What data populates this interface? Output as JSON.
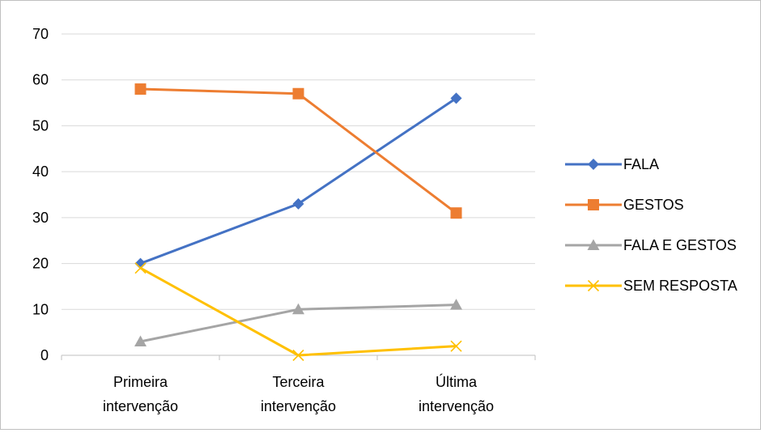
{
  "chart_data": {
    "type": "line",
    "title": "",
    "xlabel": "",
    "ylabel": "",
    "categories": [
      [
        "Primeira",
        "intervenção"
      ],
      [
        "Terceira",
        "intervenção"
      ],
      [
        "Última",
        "intervenção"
      ]
    ],
    "ylim": [
      0,
      70
    ],
    "yticks": [
      0,
      10,
      20,
      30,
      40,
      50,
      60,
      70
    ],
    "grid": true,
    "legend_position": "right",
    "series": [
      {
        "name": "FALA",
        "values": [
          20,
          33,
          56
        ],
        "color": "#4472c4",
        "marker": "diamond"
      },
      {
        "name": "GESTOS",
        "values": [
          58,
          57,
          31
        ],
        "color": "#ed7d31",
        "marker": "square"
      },
      {
        "name": "FALA E GESTOS",
        "values": [
          3,
          10,
          11
        ],
        "color": "#a5a5a5",
        "marker": "triangle"
      },
      {
        "name": "SEM RESPOSTA",
        "values": [
          19,
          0,
          2
        ],
        "color": "#ffc000",
        "marker": "x"
      }
    ]
  }
}
